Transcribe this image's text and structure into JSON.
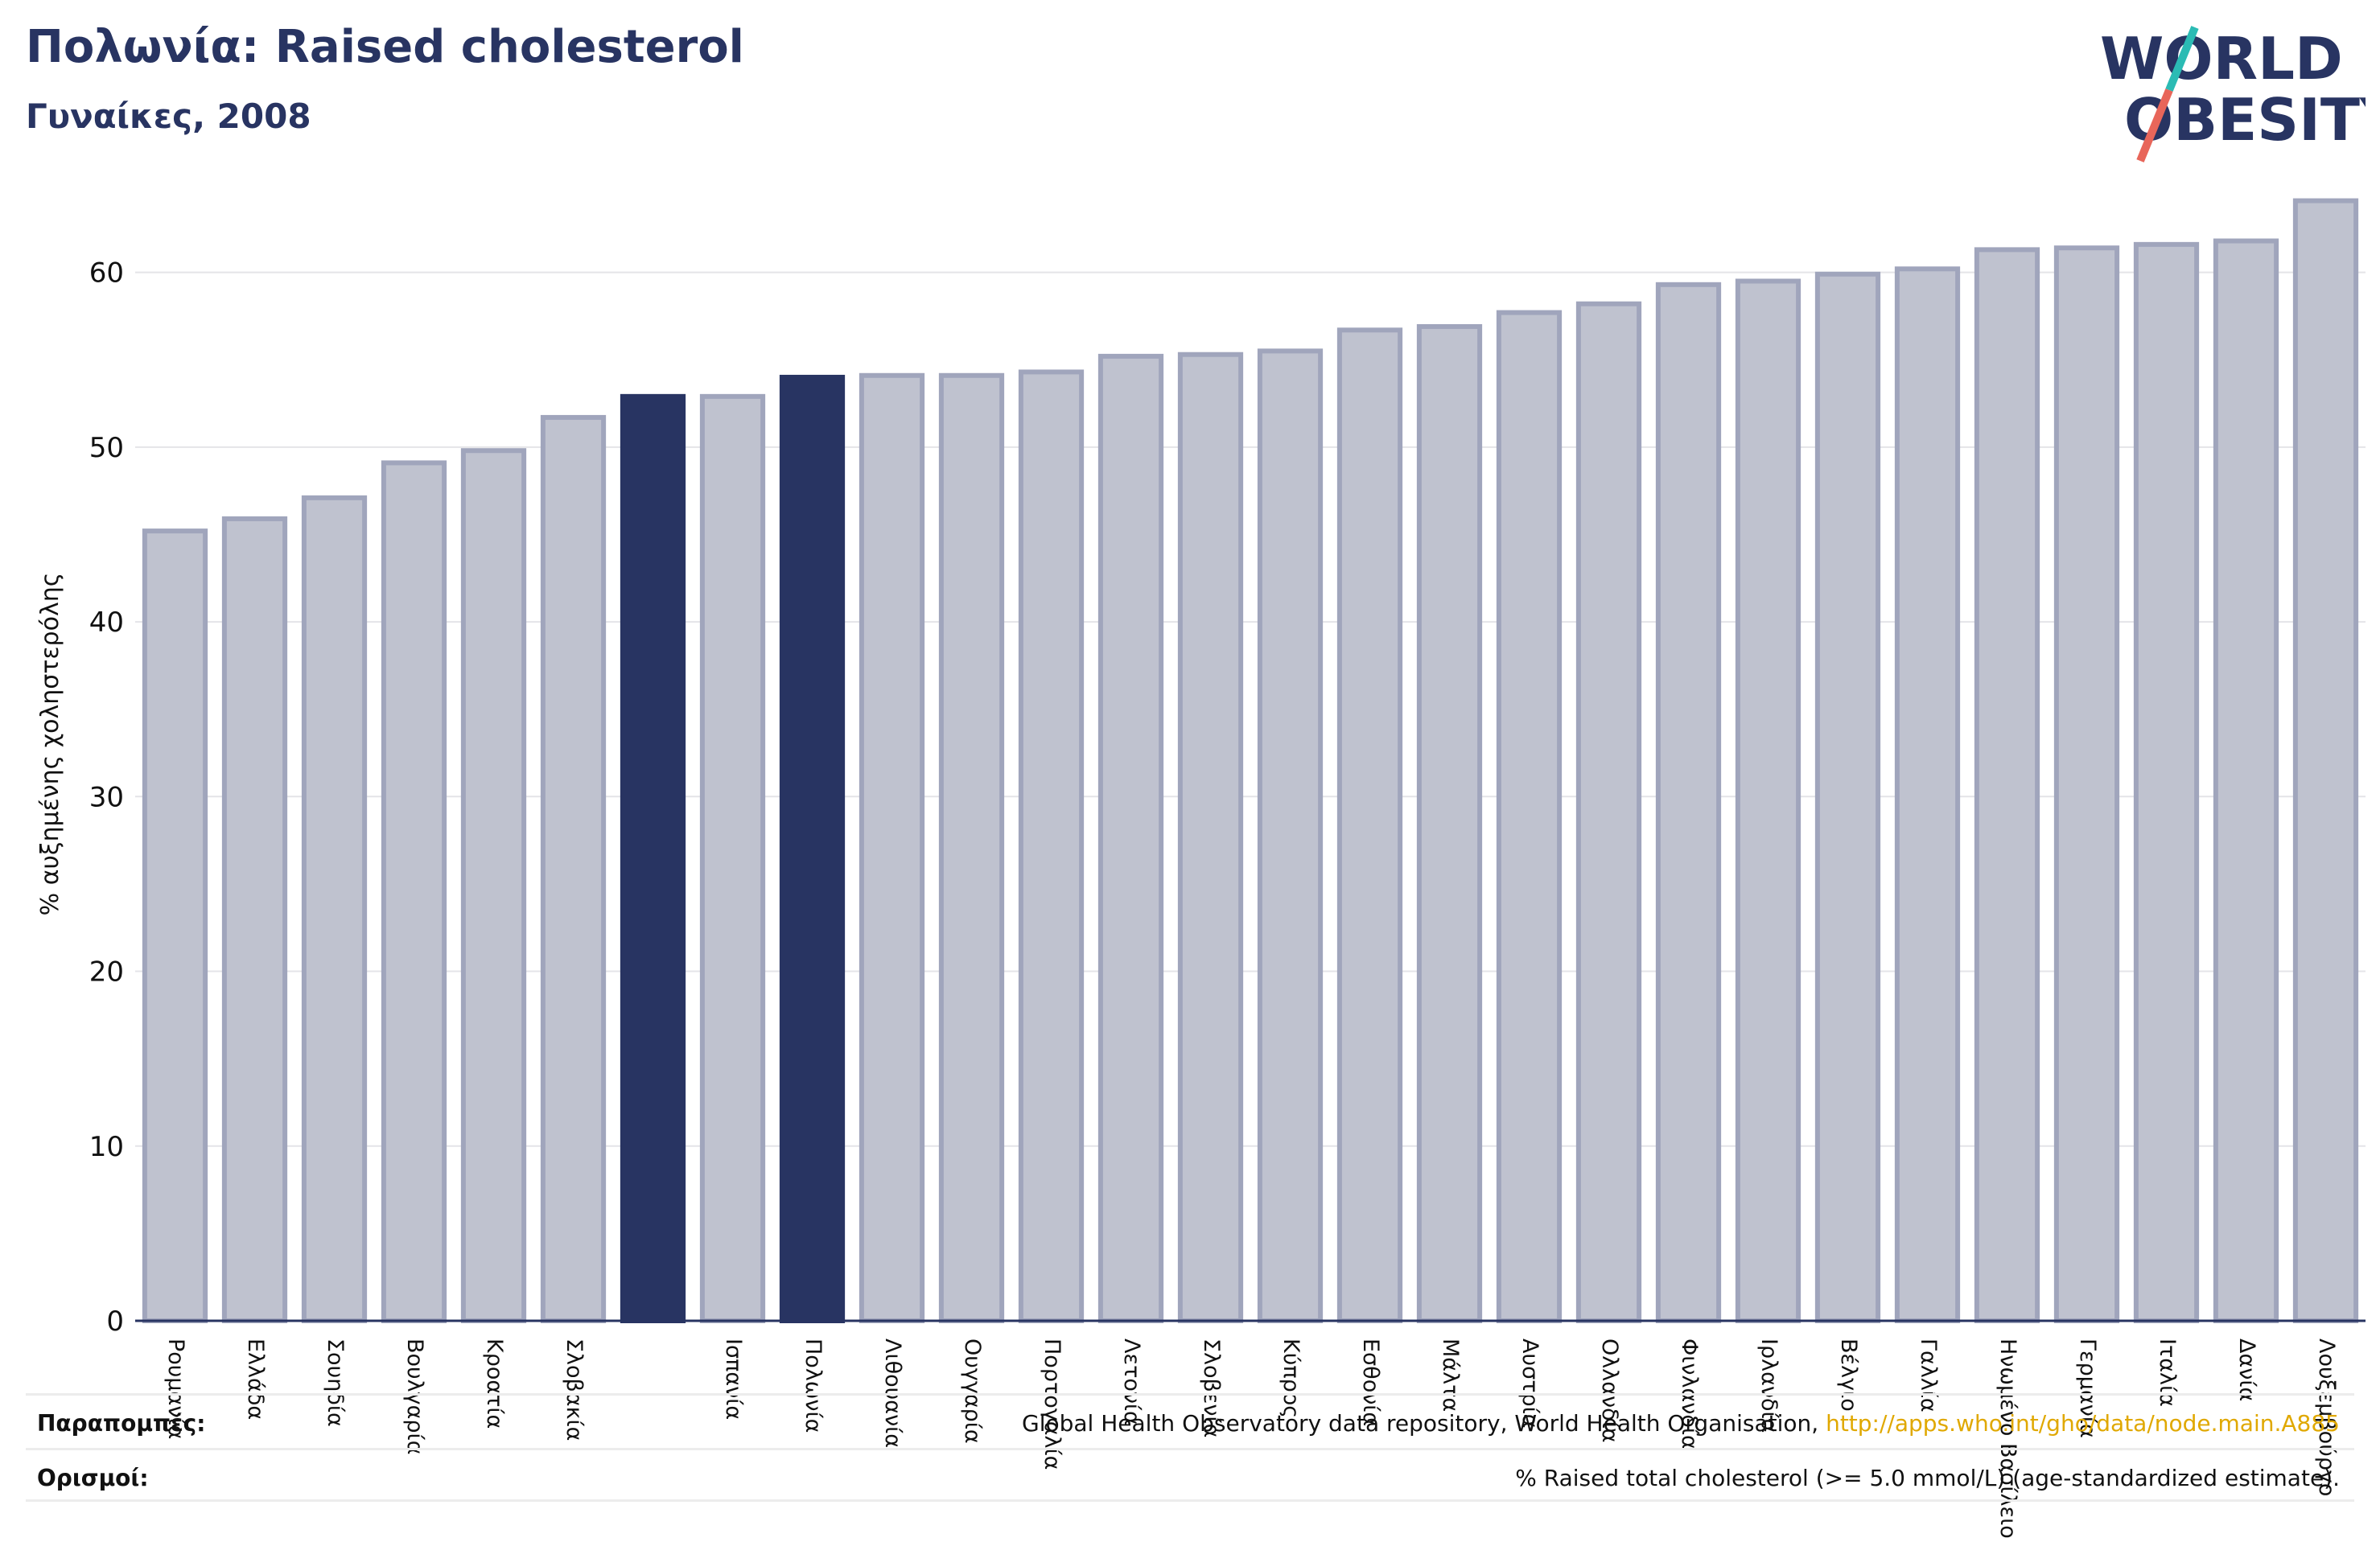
{
  "header": {
    "title": "Πολωνία: Raised cholesterol",
    "subtitle": "Γυναίκες, 2008"
  },
  "logo": {
    "line1": "WORLD",
    "line2": "OBESITY"
  },
  "colors": {
    "highlight": "#283462",
    "bar_fill": "#bfc2cf",
    "bar_stroke": "#a0a5bc",
    "text": "#283462",
    "link": "#e0a800",
    "logo_slash_top": "#2bbbb4",
    "logo_slash_bottom": "#e8665a"
  },
  "chart_data": {
    "type": "bar",
    "ylabel": "% αυξημένης χοληστερόλης",
    "ylim": [
      0,
      65
    ],
    "yticks": [
      0,
      10,
      20,
      30,
      40,
      50,
      60
    ],
    "grid": true,
    "categories": [
      "Ρουμανία",
      "Ελλάδα",
      "Σουηδία",
      "Βουλγαρία",
      "Κροατία",
      "Σλοβακία",
      "",
      "Ισπανία",
      "Πολωνία",
      "Λιθουανία",
      "Ουγγαρία",
      "Πορτογαλία",
      "Λετονία",
      "Σλοβενία",
      "Κύπρος",
      "Εσθονία",
      "Μάλτα",
      "Αυστρία",
      "Ολλανδία",
      "Φινλανδία",
      "Ιρλανδία",
      "Βέλγιο",
      "Γαλλία",
      "Ηνωμένο Βασίλειο",
      "Γερμανία",
      "Ιταλία",
      "Δανία",
      "Λουξεμβούργο"
    ],
    "values": [
      45.2,
      45.9,
      47.1,
      49.1,
      49.8,
      51.7,
      52.9,
      52.9,
      54.0,
      54.1,
      54.1,
      54.3,
      55.2,
      55.3,
      55.5,
      56.7,
      56.9,
      57.7,
      58.2,
      59.3,
      59.5,
      59.9,
      60.2,
      61.3,
      61.4,
      61.6,
      61.8,
      64.1
    ],
    "highlighted": [
      6,
      8
    ]
  },
  "footer": {
    "references_label": "Παραπομπές:",
    "references_text": "Global Health Observatory data repository, World Health Organisation, ",
    "references_link": "http://apps.who.int/gho/data/node.main.A885",
    "definitions_label": "Ορισμοί:",
    "definitions_text": "% Raised total cholesterol (>= 5.0 mmol/L) (age-standardized estimate)."
  }
}
